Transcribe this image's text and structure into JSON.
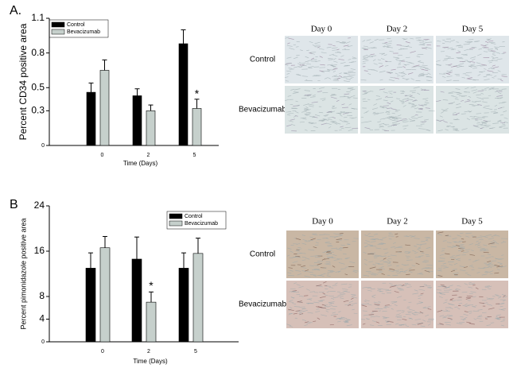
{
  "chart_data": [
    {
      "type": "bar",
      "panel_label": "A.",
      "ylabel": "Percent CD34 positive area",
      "xlabel": "Time (Days)",
      "categories": [
        "0",
        "2",
        "5"
      ],
      "series": [
        {
          "name": "Control",
          "color": "#000000",
          "values": [
            0.46,
            0.43,
            0.88
          ],
          "errors": [
            0.08,
            0.06,
            0.12
          ]
        },
        {
          "name": "Bevacizumab",
          "color": "#c6d0cc",
          "values": [
            0.65,
            0.3,
            0.32
          ],
          "errors": [
            0.09,
            0.05,
            0.08
          ]
        }
      ],
      "ylim": [
        0,
        1.1
      ],
      "yticks": [
        0,
        0.3,
        0.5,
        0.8,
        1.1
      ],
      "annotations": [
        "*"
      ],
      "legend": "upper left",
      "micrographs": {
        "columns": [
          "Day 0",
          "Day 2",
          "Day 5"
        ],
        "rows": [
          "Control",
          "Bevacizumab"
        ]
      }
    },
    {
      "type": "bar",
      "panel_label": "B",
      "ylabel": "Percent pimonidazole positive area",
      "xlabel": "Time (Days)",
      "categories": [
        "0",
        "2",
        "5"
      ],
      "series": [
        {
          "name": "Control",
          "color": "#000000",
          "values": [
            13.0,
            14.6,
            13.0
          ],
          "errors": [
            2.7,
            3.9,
            2.7
          ]
        },
        {
          "name": "Bevacizumab",
          "color": "#c6d0cc",
          "values": [
            16.6,
            7.0,
            15.6
          ],
          "errors": [
            2.0,
            1.8,
            2.7
          ]
        }
      ],
      "ylim": [
        0,
        24
      ],
      "yticks": [
        0,
        4,
        8,
        16,
        24
      ],
      "annotations": [
        "*"
      ],
      "legend": "upper right",
      "micrographs": {
        "columns": [
          "Day 0",
          "Day 2",
          "Day 5"
        ],
        "rows": [
          "Control",
          "Bevacizumab"
        ]
      }
    }
  ]
}
